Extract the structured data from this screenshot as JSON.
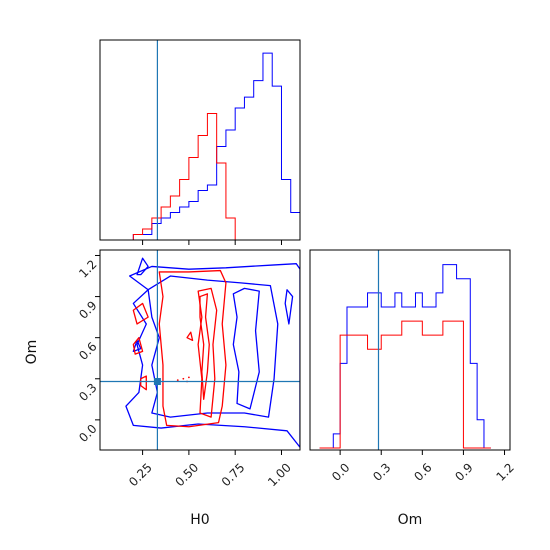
{
  "chart_data": {
    "type": "corner",
    "parameters": [
      "H0",
      "Om"
    ],
    "truth": {
      "H0": 0.33,
      "Om": 0.28
    },
    "colors": {
      "series_a": "#0000ff",
      "series_b": "#ff0000",
      "truth": "#1f77b4"
    },
    "H0_axis": {
      "range": [
        0.02,
        1.1
      ],
      "ticks": [
        0.25,
        0.5,
        0.75,
        1.0
      ],
      "tick_labels": [
        "0.25",
        "0.50",
        "0.75",
        "1.00"
      ]
    },
    "Om_axis": {
      "range": [
        -0.22,
        1.24
      ],
      "ticks": [
        0.0,
        0.3,
        0.6,
        0.9,
        1.2
      ],
      "tick_labels": [
        "0.0",
        "0.3",
        "0.6",
        "0.9",
        "1.2"
      ]
    },
    "hist_H0": {
      "bin_edges": [
        0.15,
        0.2,
        0.25,
        0.3,
        0.35,
        0.4,
        0.45,
        0.5,
        0.55,
        0.6,
        0.65,
        0.7,
        0.75,
        0.8,
        0.85,
        0.9,
        0.95,
        1.0,
        1.05,
        1.1
      ],
      "blue": [
        0,
        1,
        1,
        3,
        4,
        5,
        6,
        7,
        9,
        10,
        17,
        20,
        24,
        26,
        29,
        34,
        28,
        11,
        5
      ],
      "red": [
        0,
        1,
        2,
        4,
        6,
        8,
        11,
        15,
        19,
        23,
        14,
        4,
        0,
        0,
        0,
        0,
        0,
        0,
        0
      ]
    },
    "hist_Om": {
      "bin_edges": [
        -0.15,
        -0.05,
        0.0,
        0.05,
        0.1,
        0.2,
        0.25,
        0.3,
        0.35,
        0.4,
        0.45,
        0.5,
        0.55,
        0.6,
        0.65,
        0.7,
        0.75,
        0.8,
        0.85,
        0.9,
        0.95,
        1.0,
        1.05,
        1.1
      ],
      "blue": [
        0,
        1,
        6,
        10,
        10,
        11,
        11,
        10,
        10,
        11,
        10,
        10,
        11,
        10,
        10,
        11,
        13,
        13,
        12,
        12,
        6,
        2,
        0
      ],
      "red": [
        0,
        0,
        8,
        8,
        8,
        7,
        7,
        8,
        8,
        8,
        9,
        9,
        9,
        8,
        8,
        8,
        9,
        9,
        9,
        0,
        0,
        0,
        0
      ]
    },
    "contours_blue": [
      [
        [
          0.18,
          1.05
        ],
        [
          0.3,
          1.12
        ],
        [
          0.5,
          1.1
        ],
        [
          0.7,
          1.11
        ],
        [
          0.95,
          1.13
        ],
        [
          1.08,
          1.14
        ],
        [
          1.1,
          1.1
        ],
        [
          1.1,
          -0.2
        ],
        [
          1.03,
          -0.08
        ],
        [
          0.8,
          -0.05
        ],
        [
          0.55,
          -0.03
        ],
        [
          0.35,
          -0.06
        ],
        [
          0.2,
          -0.04
        ],
        [
          0.16,
          0.1
        ],
        [
          0.23,
          0.2
        ],
        [
          0.25,
          0.4
        ],
        [
          0.22,
          0.55
        ],
        [
          0.27,
          0.7
        ],
        [
          0.2,
          0.85
        ],
        [
          0.28,
          0.95
        ],
        [
          0.18,
          1.05
        ]
      ],
      [
        [
          0.28,
          0.95
        ],
        [
          0.4,
          1.05
        ],
        [
          0.6,
          1.02
        ],
        [
          0.78,
          1.0
        ],
        [
          0.94,
          0.98
        ],
        [
          0.98,
          0.7
        ],
        [
          0.96,
          0.3
        ],
        [
          0.93,
          0.02
        ],
        [
          0.8,
          0.05
        ],
        [
          0.6,
          0.05
        ],
        [
          0.4,
          0.02
        ],
        [
          0.3,
          0.05
        ],
        [
          0.33,
          0.2
        ],
        [
          0.3,
          0.4
        ],
        [
          0.34,
          0.6
        ],
        [
          0.3,
          0.75
        ],
        [
          0.28,
          0.95
        ]
      ],
      [
        [
          0.74,
          0.92
        ],
        [
          0.8,
          0.96
        ],
        [
          0.88,
          0.94
        ],
        [
          0.86,
          0.65
        ],
        [
          0.88,
          0.35
        ],
        [
          0.83,
          0.08
        ],
        [
          0.76,
          0.12
        ],
        [
          0.77,
          0.35
        ],
        [
          0.74,
          0.55
        ],
        [
          0.76,
          0.75
        ],
        [
          0.74,
          0.92
        ]
      ],
      [
        [
          1.03,
          0.95
        ],
        [
          1.06,
          0.9
        ],
        [
          1.04,
          0.7
        ],
        [
          1.02,
          0.85
        ],
        [
          1.03,
          0.95
        ]
      ],
      [
        [
          0.22,
          1.06
        ],
        [
          0.25,
          1.18
        ],
        [
          0.28,
          1.12
        ],
        [
          0.24,
          1.06
        ],
        [
          0.22,
          1.06
        ]
      ],
      [
        [
          0.2,
          0.5
        ],
        [
          0.22,
          0.58
        ],
        [
          0.24,
          0.52
        ],
        [
          0.2,
          0.5
        ]
      ]
    ],
    "contours_red": [
      [
        [
          0.34,
          1.08
        ],
        [
          0.5,
          1.08
        ],
        [
          0.67,
          1.09
        ],
        [
          0.7,
          1.0
        ],
        [
          0.68,
          0.7
        ],
        [
          0.7,
          0.4
        ],
        [
          0.68,
          0.1
        ],
        [
          0.66,
          -0.02
        ],
        [
          0.5,
          -0.05
        ],
        [
          0.38,
          -0.04
        ],
        [
          0.36,
          0.1
        ],
        [
          0.36,
          0.4
        ],
        [
          0.34,
          0.7
        ],
        [
          0.36,
          0.9
        ],
        [
          0.34,
          1.08
        ]
      ],
      [
        [
          0.55,
          0.94
        ],
        [
          0.62,
          0.96
        ],
        [
          0.65,
          0.8
        ],
        [
          0.63,
          0.55
        ],
        [
          0.64,
          0.3
        ],
        [
          0.62,
          0.02
        ],
        [
          0.56,
          0.05
        ],
        [
          0.57,
          0.3
        ],
        [
          0.55,
          0.55
        ],
        [
          0.57,
          0.75
        ],
        [
          0.55,
          0.94
        ]
      ],
      [
        [
          0.56,
          0.9
        ],
        [
          0.6,
          0.92
        ],
        [
          0.59,
          0.75
        ],
        [
          0.61,
          0.55
        ],
        [
          0.6,
          0.35
        ],
        [
          0.58,
          0.15
        ],
        [
          0.57,
          0.35
        ],
        [
          0.58,
          0.55
        ],
        [
          0.56,
          0.75
        ],
        [
          0.56,
          0.9
        ]
      ],
      [
        [
          0.2,
          0.8
        ],
        [
          0.25,
          0.85
        ],
        [
          0.28,
          0.75
        ],
        [
          0.22,
          0.7
        ],
        [
          0.2,
          0.8
        ]
      ],
      [
        [
          0.2,
          0.55
        ],
        [
          0.23,
          0.6
        ],
        [
          0.25,
          0.5
        ],
        [
          0.21,
          0.48
        ],
        [
          0.2,
          0.55
        ]
      ],
      [
        [
          0.24,
          0.3
        ],
        [
          0.27,
          0.32
        ],
        [
          0.27,
          0.22
        ],
        [
          0.24,
          0.25
        ],
        [
          0.24,
          0.3
        ]
      ],
      [
        [
          0.49,
          0.6
        ],
        [
          0.51,
          0.64
        ],
        [
          0.52,
          0.58
        ],
        [
          0.49,
          0.6
        ]
      ]
    ],
    "truth_marker_H0": 0.33,
    "truth_marker_Om": 0.28
  }
}
